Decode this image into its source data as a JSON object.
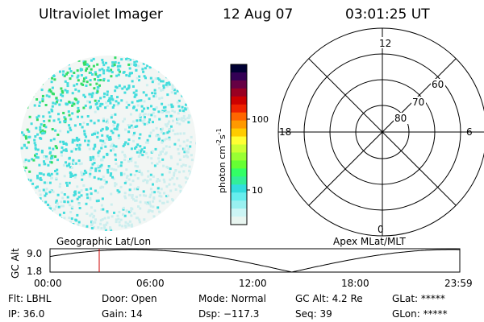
{
  "header": {
    "instrument": "Ultraviolet Imager",
    "date": "12 Aug 07",
    "time": "03:01:25 UT"
  },
  "colorbar": {
    "unit_base": "photon cm",
    "unit_exp1": "-2",
    "unit_mid": "s",
    "unit_exp2": "-1",
    "ticks": [
      "100",
      "10"
    ],
    "colors": [
      "#000033",
      "#330055",
      "#660044",
      "#990022",
      "#cc0000",
      "#ee2200",
      "#ff6600",
      "#ff9900",
      "#ffcc00",
      "#ffff33",
      "#ccff33",
      "#99ff33",
      "#66ff33",
      "#33ff66",
      "#33ee99",
      "#33dddd",
      "#66eeee",
      "#99f0f0",
      "#ccf5f5",
      "#e8f5f0"
    ]
  },
  "polar": {
    "clock_labels": {
      "top": "12",
      "bottom": "0",
      "left": "18",
      "right": "6"
    },
    "lat_labels": [
      "60",
      "70",
      "80"
    ]
  },
  "timeline": {
    "left_label": "Geographic Lat/Lon",
    "right_label": "Apex MLat/MLT",
    "y_axis_label": "GC Alt",
    "y_ticks": [
      "9.0",
      "1.8"
    ],
    "x_ticks": [
      "00:00",
      "06:00",
      "12:00",
      "18:00",
      "23:59"
    ]
  },
  "status": {
    "flt": "Flt: LBHL",
    "door": "Door: Open",
    "mode": "Mode: Normal",
    "gc_alt": "GC Alt: 4.2 Re",
    "glat": "GLat: *****",
    "ip": "IP: 36.0",
    "gain": "Gain: 14",
    "dsp": "Dsp: −117.3",
    "seq": "Seq: 39",
    "glon": "GLon: *****"
  },
  "colors": {
    "marker": "#cc0000",
    "speckle_green": "#33dd66",
    "speckle_cyan": "#44dddd",
    "speckle_pale": "#cceeee"
  }
}
